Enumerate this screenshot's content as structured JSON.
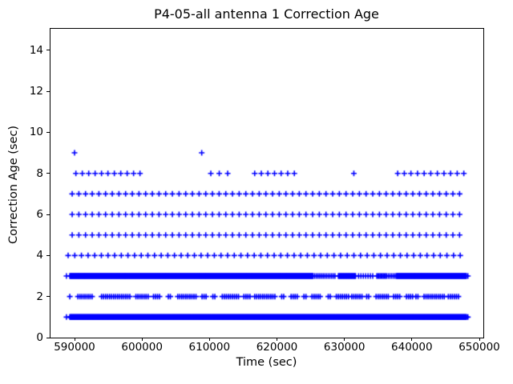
{
  "chart_data": {
    "type": "scatter",
    "title": "P4-05-all antenna 1 Correction Age",
    "xlabel": "Time (sec)",
    "ylabel": "Correction Age (sec)",
    "xlim": [
      586317,
      650593
    ],
    "ylim": [
      0,
      15.08
    ],
    "x_ticks": [
      590000,
      600000,
      610000,
      620000,
      630000,
      640000,
      650000
    ],
    "y_ticks": [
      0,
      2,
      4,
      6,
      8,
      10,
      12,
      14
    ],
    "grid": false,
    "legend": "none",
    "marker": {
      "symbol": "plus",
      "color": "#0000ff",
      "size": 7,
      "stroke_width": 1.6
    },
    "series": [
      {
        "name": "correction-age",
        "description": "Correction age in seconds vs time; '+' markers form horizontal bands at integer ages. Segments are [x_start, x_end, x_step] in seconds.",
        "bands": [
          {
            "y": 9,
            "points": [
              590000,
              608850
            ]
          },
          {
            "y": 8,
            "segments": [
              [
                590200,
                600100,
                950
              ],
              [
                610200,
                612700,
                1250
              ],
              [
                616700,
                622600,
                980
              ],
              [
                631400,
                631400,
                1
              ],
              [
                637900,
                648100,
                980
              ]
            ]
          },
          {
            "y": 7,
            "segments": [
              [
                589650,
                648050,
                990
              ]
            ]
          },
          {
            "y": 6,
            "segments": [
              [
                589650,
                648050,
                990
              ]
            ]
          },
          {
            "y": 5,
            "segments": [
              [
                589650,
                648050,
                990
              ]
            ]
          },
          {
            "y": 4,
            "segments": [
              [
                589050,
                648050,
                985
              ]
            ]
          },
          {
            "y": 3,
            "segments": [
              [
                588800,
                588800,
                1
              ],
              [
                589300,
                625400,
                60
              ],
              [
                625600,
                628700,
                250
              ],
              [
                629100,
                631700,
                80
              ],
              [
                632100,
                634500,
                350
              ],
              [
                634800,
                636300,
                160
              ],
              [
                636500,
                637600,
                250
              ],
              [
                637700,
                648100,
                60
              ],
              [
                648300,
                648300,
                1
              ]
            ]
          },
          {
            "y": 2,
            "segments": [
              [
                589300,
                589300,
                1
              ],
              [
                590500,
                592800,
                300
              ],
              [
                594000,
                594900,
                300
              ],
              [
                595200,
                598200,
                300
              ],
              [
                599100,
                600900,
                300
              ],
              [
                601700,
                602700,
                300
              ],
              [
                603900,
                604300,
                300
              ],
              [
                605300,
                608100,
                300
              ],
              [
                608900,
                609600,
                300
              ],
              [
                610500,
                611000,
                300
              ],
              [
                611900,
                614500,
                300
              ],
              [
                615100,
                616000,
                300
              ],
              [
                616700,
                619900,
                300
              ],
              [
                620700,
                621200,
                300
              ],
              [
                622100,
                623100,
                300
              ],
              [
                624000,
                624500,
                300
              ],
              [
                625200,
                626600,
                300
              ],
              [
                627600,
                628100,
                300
              ],
              [
                628800,
                630700,
                300
              ],
              [
                631100,
                632600,
                300
              ],
              [
                633300,
                633800,
                300
              ],
              [
                634700,
                636600,
                300
              ],
              [
                637300,
                638300,
                300
              ],
              [
                639200,
                640200,
                300
              ],
              [
                640600,
                641100,
                300
              ],
              [
                641800,
                644900,
                300
              ],
              [
                645400,
                646900,
                300
              ]
            ]
          },
          {
            "y": 1,
            "segments": [
              [
                588800,
                588800,
                1
              ],
              [
                589300,
                648100,
                55
              ],
              [
                648300,
                648300,
                1
              ]
            ]
          }
        ]
      }
    ]
  }
}
